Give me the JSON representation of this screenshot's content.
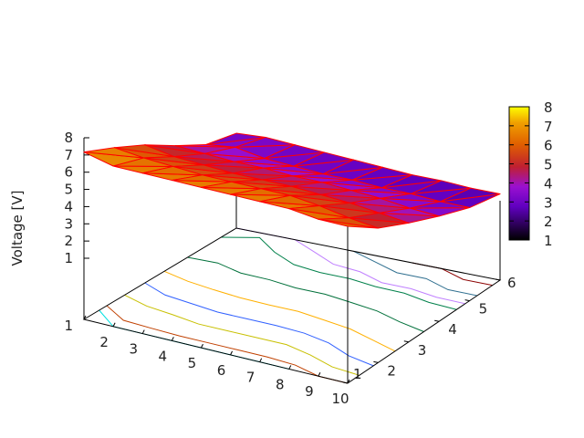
{
  "chart_data": {
    "type": "surface",
    "zlabel": "Voltage [V]",
    "x_ticks": [
      "1",
      "2",
      "3",
      "4",
      "5",
      "6",
      "7",
      "8",
      "9",
      "10"
    ],
    "y_ticks": [
      "1",
      "2",
      "3",
      "4",
      "5",
      "6"
    ],
    "z_ticks": [
      "1",
      "2",
      "3",
      "4",
      "5",
      "6",
      "7",
      "8"
    ],
    "colorbar_ticks": [
      "1",
      "2",
      "3",
      "4",
      "5",
      "6",
      "7",
      "8"
    ],
    "xlim": [
      1,
      10
    ],
    "ylim": [
      1,
      6
    ],
    "zlim": [
      1,
      8
    ],
    "cblim": [
      1,
      8
    ],
    "palette": [
      "#000000",
      "#7a00ff",
      "#c01e6a",
      "#e05000",
      "#f08a00",
      "#ffff00"
    ],
    "mesh_color": "#ff0000",
    "contours": "base",
    "contour_levels": [
      2.6,
      2.8,
      3.0,
      3.2,
      4.0,
      4.8,
      5.5,
      6.1,
      6.6,
      6.8,
      7.0,
      7.1
    ],
    "contour_colors": [
      "#8b0000",
      "#2f6f8f",
      "#c080ff",
      "#00804a",
      "#00703a",
      "#ffb000",
      "#3060ff",
      "#c8c000",
      "#c04000",
      "#00e0e0",
      "#b000ff",
      "#0080ff"
    ],
    "z": [
      [
        7.2,
        6.8,
        6.8,
        6.8,
        6.8,
        6.8,
        6.8,
        6.8,
        6.6,
        6.6
      ],
      [
        6.4,
        6.2,
        6.1,
        6.0,
        6.0,
        6.0,
        6.0,
        5.8,
        5.5,
        5.3
      ],
      [
        5.5,
        5.2,
        5.1,
        5.0,
        5.0,
        5.0,
        4.9,
        4.8,
        4.6,
        4.4
      ],
      [
        4.4,
        4.3,
        4.2,
        4.2,
        4.1,
        4.1,
        4.0,
        3.9,
        3.7,
        3.6
      ],
      [
        3.4,
        3.6,
        3.3,
        3.2,
        3.1,
        3.1,
        3.0,
        3.0,
        2.9,
        2.9
      ],
      [
        3.0,
        3.1,
        3.0,
        2.9,
        2.8,
        2.7,
        2.6,
        2.6,
        2.5,
        2.5
      ]
    ]
  }
}
